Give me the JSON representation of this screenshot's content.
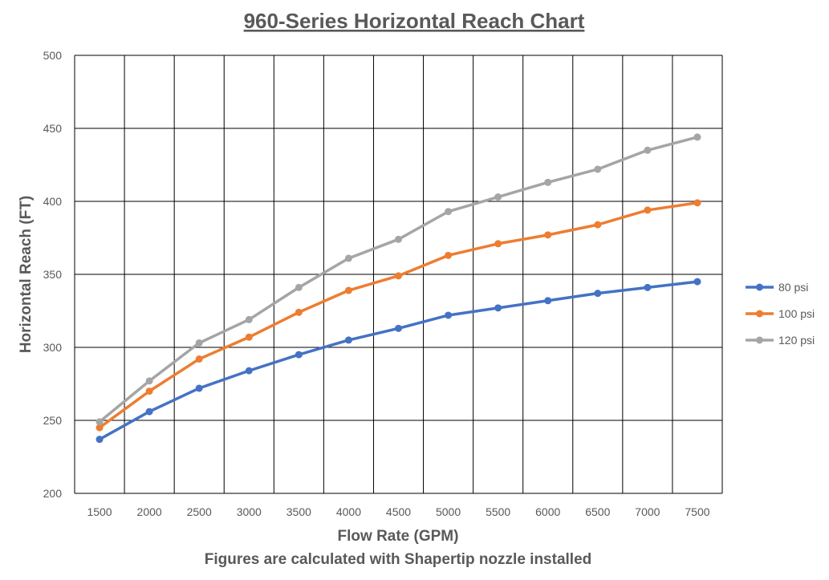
{
  "chart_data": {
    "type": "line",
    "title": "960-Series Horizontal Reach Chart",
    "xlabel": "Flow Rate (GPM)",
    "ylabel": "Horizontal Reach (FT)",
    "footnote": "Figures are calculated with Shapertip nozzle installed",
    "categories": [
      "1500",
      "2000",
      "2500",
      "3000",
      "3500",
      "4000",
      "4500",
      "5000",
      "5500",
      "6000",
      "6500",
      "7000",
      "7500"
    ],
    "ylim": [
      200,
      500
    ],
    "yticks": [
      "200",
      "250",
      "300",
      "350",
      "400",
      "450",
      "500"
    ],
    "grid": true,
    "legend_position": "right",
    "series": [
      {
        "name": "80 psi",
        "color": "#4472C4",
        "values": [
          237,
          256,
          272,
          284,
          295,
          305,
          313,
          322,
          327,
          332,
          337,
          341,
          345
        ]
      },
      {
        "name": "100 psi",
        "color": "#ED7D31",
        "values": [
          245,
          270,
          292,
          307,
          324,
          339,
          349,
          363,
          371,
          377,
          384,
          394,
          399
        ]
      },
      {
        "name": "120 psi",
        "color": "#A5A5A5",
        "values": [
          249,
          277,
          303,
          319,
          341,
          361,
          374,
          393,
          403,
          413,
          422,
          435,
          444
        ]
      }
    ]
  }
}
